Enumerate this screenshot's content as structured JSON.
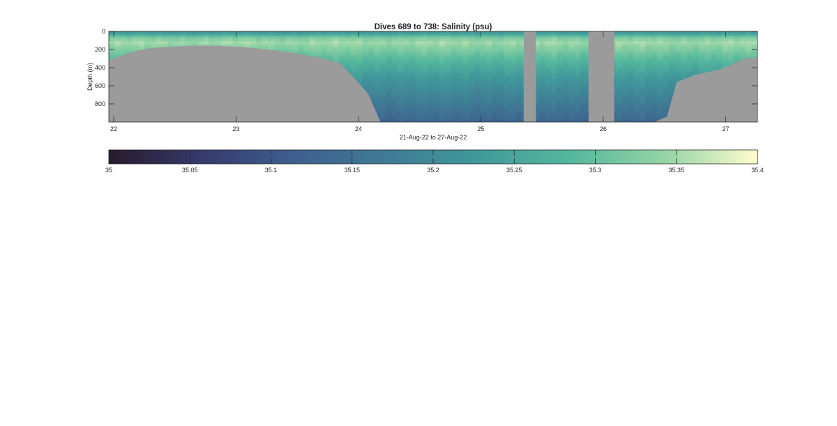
{
  "chart_data": {
    "type": "heatmap",
    "title": "Dives 689 to 738: Salinity (psu)",
    "xlabel": "21-Aug-22 to 27-Aug-22",
    "ylabel": "Depth (m)",
    "x_ticks": [
      "22",
      "23",
      "24",
      "25",
      "26",
      "27"
    ],
    "x_tick_values": [
      22,
      23,
      24,
      25,
      26,
      27
    ],
    "xlim": [
      21.96,
      27.26
    ],
    "y_ticks": [
      "0",
      "200",
      "400",
      "600",
      "800"
    ],
    "y_tick_values": [
      0,
      200,
      400,
      600,
      800
    ],
    "ylim": [
      0,
      1000
    ],
    "y_reversed": true,
    "no_data_color": "#9b9b9b",
    "colormap": [
      "#281a2c",
      "#363a6c",
      "#3e5f8e",
      "#3f7b95",
      "#41999b",
      "#55b89d",
      "#95d4a6",
      "#fffdcd"
    ],
    "colorbar": {
      "range": [
        35,
        35.4
      ],
      "ticks": [
        "35",
        "35.05",
        "35.1",
        "35.15",
        "35.2",
        "35.25",
        "35.3",
        "35.35",
        "35.4"
      ],
      "tick_values": [
        35,
        35.05,
        35.1,
        35.15,
        35.2,
        35.25,
        35.3,
        35.35,
        35.4
      ]
    },
    "bottom_depth_m": [
      {
        "t": 21.96,
        "depth": 320
      },
      {
        "t": 22.08,
        "depth": 260
      },
      {
        "t": 22.18,
        "depth": 215
      },
      {
        "t": 22.3,
        "depth": 185
      },
      {
        "t": 22.45,
        "depth": 170
      },
      {
        "t": 22.6,
        "depth": 160
      },
      {
        "t": 22.75,
        "depth": 157
      },
      {
        "t": 22.95,
        "depth": 163
      },
      {
        "t": 23.1,
        "depth": 178
      },
      {
        "t": 23.3,
        "depth": 205
      },
      {
        "t": 23.5,
        "depth": 245
      },
      {
        "t": 23.7,
        "depth": 295
      },
      {
        "t": 23.85,
        "depth": 350
      },
      {
        "t": 23.95,
        "depth": 490
      },
      {
        "t": 24.08,
        "depth": 690
      },
      {
        "t": 24.18,
        "depth": 1000
      },
      {
        "t": 26.42,
        "depth": 1000
      },
      {
        "t": 26.52,
        "depth": 940
      },
      {
        "t": 26.6,
        "depth": 560
      },
      {
        "t": 26.75,
        "depth": 480
      },
      {
        "t": 26.95,
        "depth": 420
      },
      {
        "t": 27.05,
        "depth": 365
      },
      {
        "t": 27.15,
        "depth": 300
      },
      {
        "t": 27.26,
        "depth": 285
      }
    ],
    "data_gaps": [
      [
        25.35,
        25.45
      ],
      [
        25.88,
        26.09
      ]
    ],
    "salinity_profile": [
      {
        "depth": 0,
        "salinity": 35.2
      },
      {
        "depth": 25,
        "salinity": 35.24
      },
      {
        "depth": 60,
        "salinity": 35.31
      },
      {
        "depth": 120,
        "salinity": 35.35
      },
      {
        "depth": 180,
        "salinity": 35.33
      },
      {
        "depth": 300,
        "salinity": 35.29
      },
      {
        "depth": 500,
        "salinity": 35.23
      },
      {
        "depth": 700,
        "salinity": 35.19
      },
      {
        "depth": 900,
        "salinity": 35.15
      },
      {
        "depth": 1000,
        "salinity": 35.13
      }
    ]
  }
}
